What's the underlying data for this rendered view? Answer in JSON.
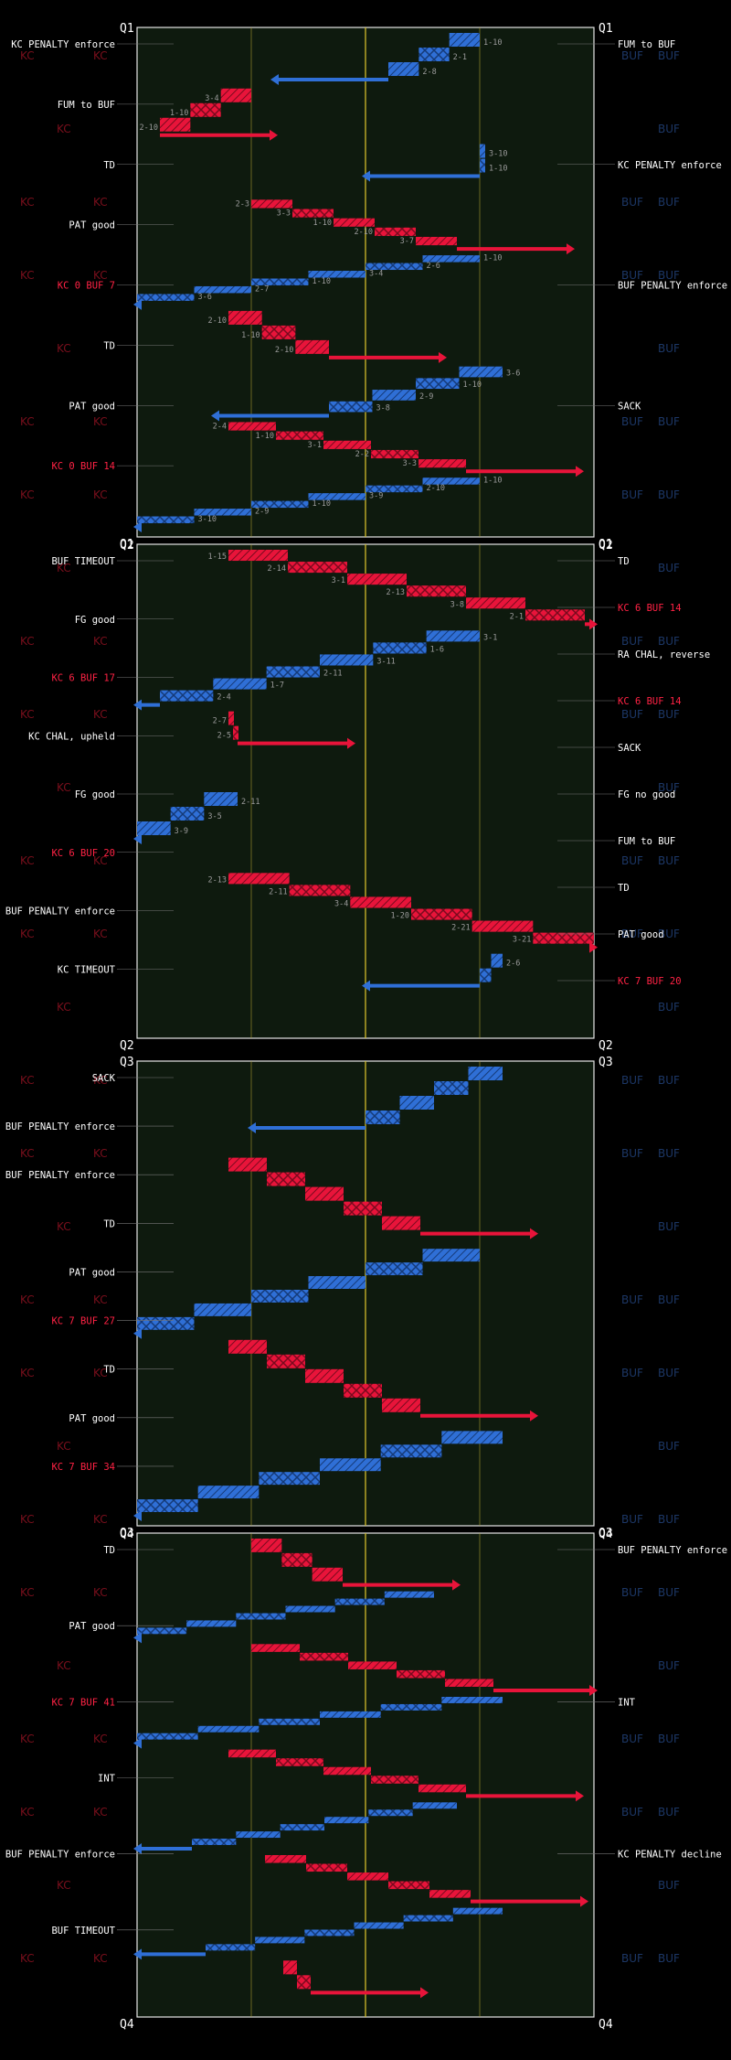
{
  "colors": {
    "kc": "#e8143a",
    "buf": "#2f6fd6",
    "field": "#0e1a0e",
    "grid": "#b5a532",
    "midfield": "#d7c02a",
    "watermark_kc": "#7a0f1c",
    "watermark_buf": "#1c3766",
    "text": "#ffffff",
    "muted": "#9a9a9a"
  },
  "watermarks": {
    "kc": "KC",
    "buf": "BUF"
  },
  "chart_data": {
    "type": "drive-chart",
    "teams": [
      "KC",
      "BUF"
    ],
    "quarters": [
      {
        "label": "Q1",
        "drives": [
          {
            "team": "BUF",
            "start": 75,
            "end": 55,
            "result": "punt"
          },
          {
            "team": "KC",
            "start": 25,
            "end": 5,
            "result": "TD"
          },
          {
            "team": "BUF",
            "start": 75,
            "end": 75,
            "result": "punt"
          },
          {
            "team": "KC",
            "start": 25,
            "end": 70,
            "result": "punt"
          },
          {
            "team": "BUF",
            "start": 75,
            "end": 0,
            "result": "TD"
          },
          {
            "team": "KC",
            "start": 20,
            "end": 42,
            "result": "punt"
          },
          {
            "team": "BUF",
            "start": 80,
            "end": 42,
            "result": "punt"
          },
          {
            "team": "KC",
            "start": 20,
            "end": 72,
            "result": "punt"
          },
          {
            "team": "BUF",
            "start": 75,
            "end": 0,
            "result": "TD"
          }
        ],
        "events": [
          {
            "text": "KC PENALTY enforce",
            "side": "left",
            "color": "white"
          },
          {
            "text": "FUM to BUF",
            "side": "left",
            "color": "white"
          },
          {
            "text": "TD",
            "side": "left",
            "color": "white"
          },
          {
            "text": "PAT good",
            "side": "left",
            "color": "white"
          },
          {
            "text": "KC 0 BUF 7",
            "side": "left",
            "color": "red"
          },
          {
            "text": "FUM to BUF",
            "side": "right",
            "color": "white"
          },
          {
            "text": "KC PENALTY enforce",
            "side": "right",
            "color": "white"
          },
          {
            "text": "BUF PENALTY enforce",
            "side": "right",
            "color": "white"
          },
          {
            "text": "SACK",
            "side": "right",
            "color": "white"
          },
          {
            "text": "TD",
            "side": "left",
            "color": "white"
          },
          {
            "text": "PAT good",
            "side": "left",
            "color": "white"
          },
          {
            "text": "KC 0 BUF 14",
            "side": "left",
            "color": "red"
          }
        ]
      },
      {
        "label": "Q2",
        "drives": [
          {
            "team": "KC",
            "start": 20,
            "end": 98,
            "result": "TD"
          },
          {
            "team": "BUF",
            "start": 75,
            "end": 5,
            "result": "FG"
          },
          {
            "team": "KC",
            "start": 20,
            "end": 22,
            "result": "FUM"
          },
          {
            "team": "BUF",
            "start": 22,
            "end": 0,
            "result": "FG"
          },
          {
            "team": "KC",
            "start": 20,
            "end": 100,
            "result": "TD"
          },
          {
            "team": "BUF",
            "start": 80,
            "end": 75,
            "result": "end half"
          }
        ],
        "events": [
          {
            "text": "TD",
            "side": "right",
            "color": "white"
          },
          {
            "text": "KC 6 BUF 14",
            "side": "right",
            "color": "red"
          },
          {
            "text": "RA CHAL, reverse",
            "side": "right",
            "color": "white"
          },
          {
            "text": "KC 6 BUF 14",
            "side": "right",
            "color": "red"
          },
          {
            "text": "SACK",
            "side": "right",
            "color": "white"
          },
          {
            "text": "FG no good",
            "side": "right",
            "color": "white"
          },
          {
            "text": "BUF TIMEOUT",
            "side": "left",
            "color": "white"
          },
          {
            "text": "FG good",
            "side": "left",
            "color": "white"
          },
          {
            "text": "KC 6 BUF 17",
            "side": "left",
            "color": "red"
          },
          {
            "text": "KC CHAL, upheld",
            "side": "left",
            "color": "white"
          },
          {
            "text": "FUM to BUF",
            "side": "right",
            "color": "white"
          },
          {
            "text": "FG good",
            "side": "left",
            "color": "white"
          },
          {
            "text": "KC 6 BUF 20",
            "side": "left",
            "color": "red"
          },
          {
            "text": "TD",
            "side": "right",
            "color": "white"
          },
          {
            "text": "PAT good",
            "side": "right",
            "color": "white"
          },
          {
            "text": "KC 7 BUF 20",
            "side": "right",
            "color": "red"
          },
          {
            "text": "BUF PENALTY enforce",
            "side": "left",
            "color": "white"
          },
          {
            "text": "KC TIMEOUT",
            "side": "left",
            "color": "white"
          }
        ]
      },
      {
        "label": "Q3",
        "drives": [
          {
            "team": "BUF",
            "start": 80,
            "end": 50,
            "result": "punt"
          },
          {
            "team": "KC",
            "start": 20,
            "end": 62,
            "result": "punt"
          },
          {
            "team": "BUF",
            "start": 75,
            "end": 0,
            "result": "TD"
          },
          {
            "team": "KC",
            "start": 20,
            "end": 62,
            "result": "punt"
          },
          {
            "team": "BUF",
            "start": 80,
            "end": 0,
            "result": "TD"
          }
        ],
        "events": [
          {
            "text": "SACK",
            "side": "left",
            "color": "white"
          },
          {
            "text": "BUF PENALTY enforce",
            "side": "left",
            "color": "white"
          },
          {
            "text": "BUF PENALTY enforce",
            "side": "left",
            "color": "white"
          },
          {
            "text": "TD",
            "side": "left",
            "color": "white"
          },
          {
            "text": "PAT good",
            "side": "left",
            "color": "white"
          },
          {
            "text": "KC 7 BUF 27",
            "side": "left",
            "color": "red"
          },
          {
            "text": "TD",
            "side": "left",
            "color": "white"
          },
          {
            "text": "PAT good",
            "side": "left",
            "color": "white"
          },
          {
            "text": "KC 7 BUF 34",
            "side": "left",
            "color": "red"
          }
        ]
      },
      {
        "label": "Q4",
        "drives": [
          {
            "team": "KC",
            "start": 25,
            "end": 45,
            "result": "INT"
          },
          {
            "team": "BUF",
            "start": 65,
            "end": 0,
            "result": "TD"
          },
          {
            "team": "KC",
            "start": 25,
            "end": 78,
            "result": "punt"
          },
          {
            "team": "BUF",
            "start": 80,
            "end": 0,
            "result": "punt"
          },
          {
            "team": "KC",
            "start": 20,
            "end": 72,
            "result": "INT"
          },
          {
            "team": "BUF",
            "start": 70,
            "end": 12,
            "result": "punt"
          },
          {
            "team": "KC",
            "start": 28,
            "end": 73,
            "result": "punt"
          },
          {
            "team": "BUF",
            "start": 80,
            "end": 15,
            "result": "end game"
          },
          {
            "team": "KC",
            "start": 32,
            "end": 38,
            "result": "end game"
          }
        ],
        "events": [
          {
            "text": "BUF PENALTY enforce",
            "side": "right",
            "color": "white"
          },
          {
            "text": "INT",
            "side": "right",
            "color": "white"
          },
          {
            "text": "TD",
            "side": "left",
            "color": "white"
          },
          {
            "text": "PAT good",
            "side": "left",
            "color": "white"
          },
          {
            "text": "KC 7 BUF 41",
            "side": "left",
            "color": "red"
          },
          {
            "text": "KC PENALTY decline",
            "side": "right",
            "color": "white"
          },
          {
            "text": "INT",
            "side": "left",
            "color": "white"
          },
          {
            "text": "BUF PENALTY enforce",
            "side": "left",
            "color": "white"
          },
          {
            "text": "BUF TIMEOUT",
            "side": "left",
            "color": "white"
          }
        ]
      }
    ],
    "down_labels": [
      "1-10",
      "2-1",
      "2-8",
      "3-4",
      "1-10",
      "2-10",
      "3-10",
      "1-10",
      "2-3",
      "3-3",
      "1-10",
      "2-10",
      "3-7",
      "1-10",
      "2-6",
      "3-4",
      "1-10",
      "2-7",
      "3-6",
      "2-10",
      "1-10",
      "2-10",
      "3-6",
      "1-10",
      "2-9",
      "3-8",
      "2-4",
      "1-10",
      "3-1",
      "2-2",
      "3-3",
      "1-10",
      "2-10",
      "3-9",
      "1-10",
      "2-9",
      "3-10",
      "1-15",
      "2-14",
      "3-1",
      "2-13",
      "3-8",
      "2-1",
      "3-1",
      "1-6",
      "3-11",
      "2-11",
      "1-7",
      "2-4",
      "2-7",
      "2-5",
      "2-11",
      "3-5",
      "3-9",
      "2-13",
      "2-11",
      "3-4",
      "1-20",
      "2-21",
      "3-21",
      "2-6"
    ]
  }
}
